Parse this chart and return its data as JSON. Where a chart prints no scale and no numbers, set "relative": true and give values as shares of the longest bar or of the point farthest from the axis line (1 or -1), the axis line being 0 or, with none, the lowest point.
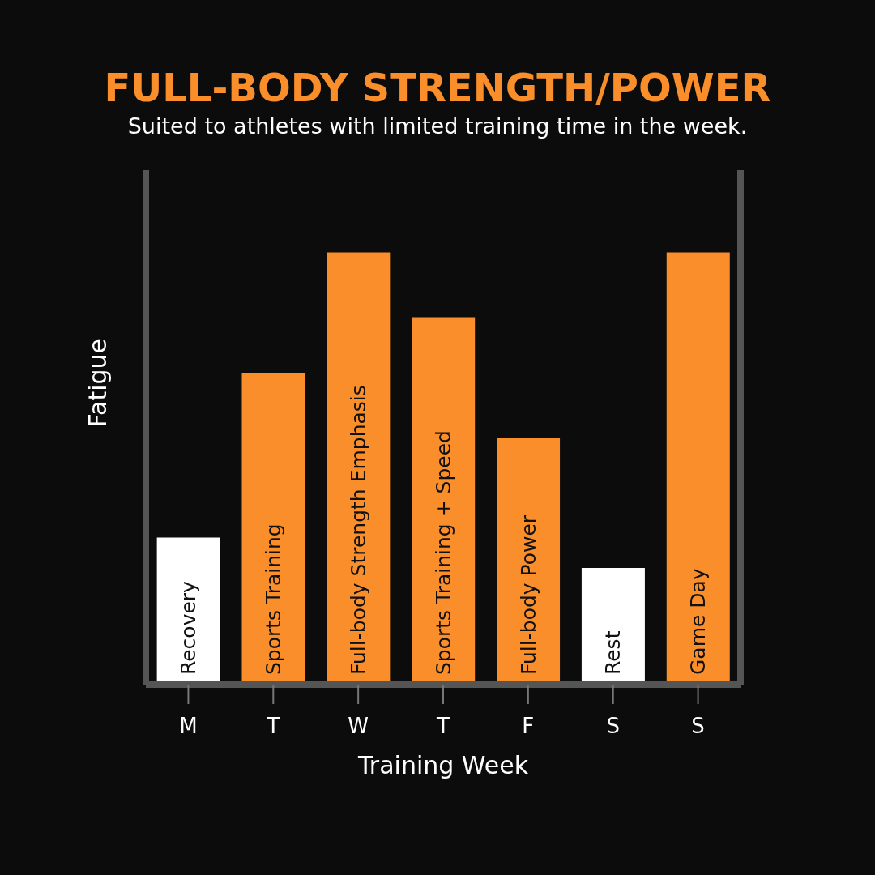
{
  "chart_data": {
    "type": "bar",
    "title": "FULL-BODY STRENGTH/POWER",
    "subtitle": "Suited to athletes with limited training time in the week.",
    "xlabel": "Training Week",
    "ylabel": "Fatigue",
    "relative": true,
    "categories": [
      "M",
      "T",
      "W",
      "T",
      "F",
      "S",
      "S"
    ],
    "values": [
      0.34,
      0.72,
      1,
      0.85,
      0.57,
      0.27,
      1
    ],
    "colors": [
      "#ffffff",
      "#f98e2b",
      "#f98e2b",
      "#f98e2b",
      "#f98e2b",
      "#ffffff",
      "#f98e2b"
    ],
    "annotations": [
      "Recovery",
      "Sports Training",
      "Full-body Strength Emphasis",
      "Sports Training + Speed",
      "Full-body Power",
      "Rest",
      "Game Day"
    ],
    "grid": false,
    "legend": false
  }
}
